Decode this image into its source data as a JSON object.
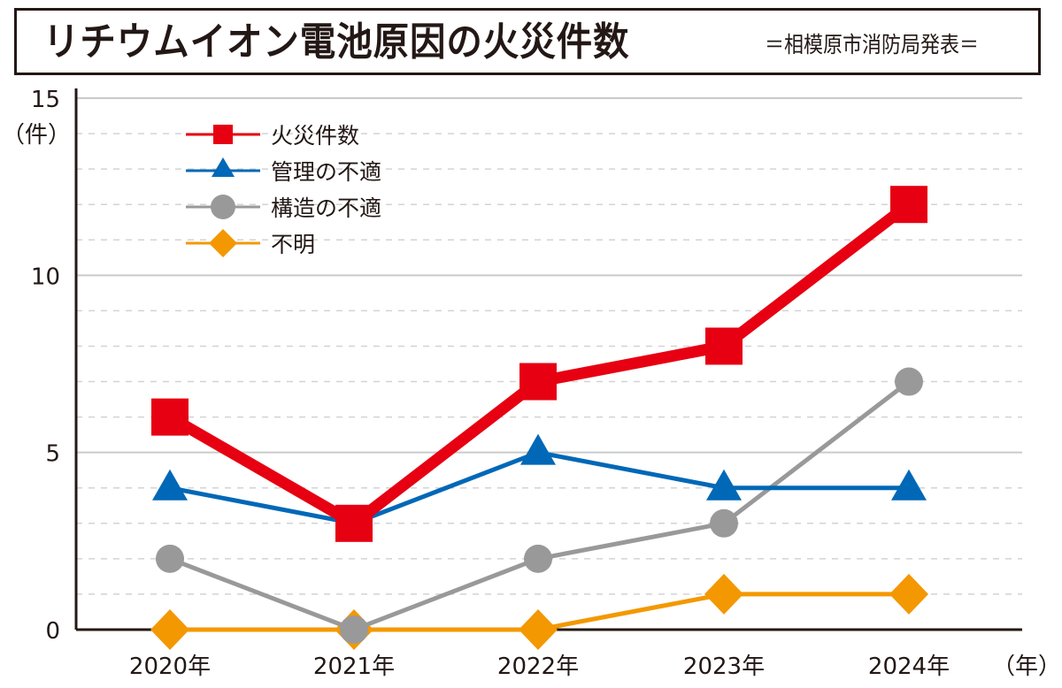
{
  "header": {
    "title": "リチウムイオン電池原因の火災件数",
    "subtitle": "＝相模原市消防局発表＝"
  },
  "chart_data": {
    "type": "line",
    "title": "リチウムイオン電池原因の火災件数",
    "subtitle": "＝相模原市消防局発表＝",
    "xlabel": "（年）",
    "ylabel": "（件）",
    "categories": [
      "2020年",
      "2021年",
      "2022年",
      "2023年",
      "2024年"
    ],
    "ylim": [
      0,
      15
    ],
    "yticks": [
      0,
      5,
      10,
      15
    ],
    "minor_step": 1,
    "grid": true,
    "legend_position": "top-left",
    "series": [
      {
        "name": "火災件数",
        "color": "#e60012",
        "marker": "square",
        "values": [
          6,
          3,
          7,
          8,
          12
        ]
      },
      {
        "name": "管理の不適",
        "color": "#0068b7",
        "marker": "triangle",
        "values": [
          4,
          3,
          5,
          4,
          4
        ]
      },
      {
        "name": "構造の不適",
        "color": "#999999",
        "marker": "circle",
        "values": [
          2,
          0,
          2,
          3,
          7
        ]
      },
      {
        "name": "不明",
        "color": "#f39800",
        "marker": "diamond",
        "values": [
          0,
          0,
          0,
          1,
          1
        ]
      }
    ]
  }
}
